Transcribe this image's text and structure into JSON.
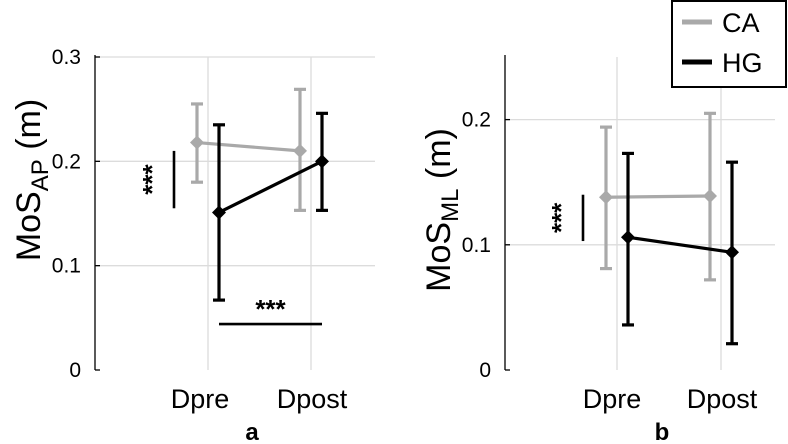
{
  "chart_data": [
    {
      "type": "line",
      "panel_label": "a",
      "ylabel_main": "MoS",
      "ylabel_sub": "AP",
      "ylabel_unit": " (m)",
      "categories": [
        "Dpre",
        "Dpost"
      ],
      "yticks": [
        "0",
        "0.1",
        "0.2",
        "0.3"
      ],
      "ylim": [
        0,
        0.3
      ],
      "grid": true,
      "series": [
        {
          "name": "CA",
          "color": "#a9a9a9",
          "values": [
            0.218,
            0.21
          ],
          "err_low": [
            0.18,
            0.153
          ],
          "err_high": [
            0.255,
            0.269
          ]
        },
        {
          "name": "HG",
          "color": "#000000",
          "values": [
            0.151,
            0.2
          ],
          "err_low": [
            0.067,
            0.153
          ],
          "err_high": [
            0.235,
            0.246
          ]
        }
      ],
      "annotations": [
        {
          "text": "***",
          "kind": "vertical",
          "at": "Dpre",
          "y_range": [
            0.155,
            0.21
          ]
        },
        {
          "text": "***",
          "kind": "horizontal",
          "y": 0.044,
          "x_range": [
            "Dpre",
            "Dpost"
          ]
        }
      ]
    },
    {
      "type": "line",
      "panel_label": "b",
      "ylabel_main": "MoS",
      "ylabel_sub": "ML",
      "ylabel_unit": " (m)",
      "categories": [
        "Dpre",
        "Dpost"
      ],
      "yticks": [
        "0",
        "0.1",
        "0.2"
      ],
      "ylim": [
        0,
        0.25
      ],
      "grid": true,
      "series": [
        {
          "name": "CA",
          "color": "#a9a9a9",
          "values": [
            0.138,
            0.139
          ],
          "err_low": [
            0.081,
            0.072
          ],
          "err_high": [
            0.194,
            0.205
          ]
        },
        {
          "name": "HG",
          "color": "#000000",
          "values": [
            0.106,
            0.094
          ],
          "err_low": [
            0.036,
            0.021
          ],
          "err_high": [
            0.173,
            0.166
          ]
        }
      ],
      "annotations": [
        {
          "text": "***",
          "kind": "vertical",
          "at": "Dpre",
          "y_range": [
            0.103,
            0.14
          ]
        }
      ]
    }
  ],
  "legend": {
    "placement": "top-right",
    "entries": [
      {
        "label": "CA",
        "color": "#a9a9a9"
      },
      {
        "label": "HG",
        "color": "#000000"
      }
    ]
  }
}
